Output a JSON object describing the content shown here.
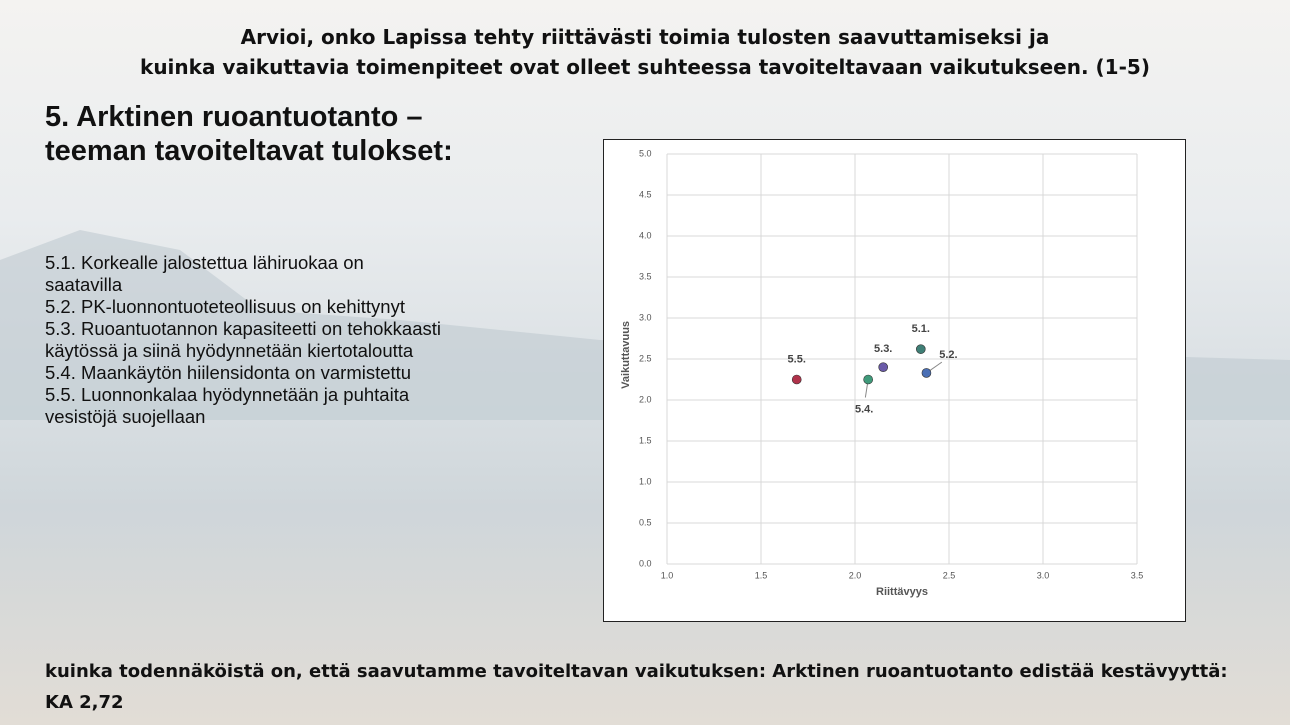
{
  "slide": {
    "title": [
      "Arvioi, onko Lapissa tehty riittävästi toimia tulosten saavuttamiseksi ja",
      "kuinka vaikuttavia toimenpiteet ovat olleet suhteessa tavoiteltavaan vaikutukseen. (1-5)"
    ],
    "heading": "5. Arktinen ruoantuotanto –teeman tavoiteltavat tulokset:",
    "items": [
      "5.1. Korkealle jalostettua lähiruokaa on saatavilla",
      "5.2. PK-luonnontuoteteollisuus on kehittynyt",
      "5.3. Ruoantuotannon kapasiteetti on tehokkaasti käytössä ja siinä hyödynnetään kiertotaloutta",
      "5.4. Maankäytön hiilensidonta on varmistettu",
      "5.5. Luonnonkalaa hyödynnetään ja puhtaita vesistöjä suojellaan"
    ],
    "footer": "kuinka todennäköistä on, että saavutamme tavoiteltavan vaikutuksen: Arktinen ruoantuotanto edistää kestävyyttä: KA 2,72"
  },
  "chart_data": {
    "type": "scatter",
    "x_label": "Riittävyys",
    "y_label": "Vaikuttavuus",
    "labels": [
      "5.1.",
      "5.2.",
      "5.3.",
      "5.4.",
      "5.5."
    ],
    "x": [
      2.35,
      2.38,
      2.15,
      2.07,
      1.69
    ],
    "values": [
      2.62,
      2.33,
      2.4,
      2.25,
      2.25
    ],
    "colors": [
      "#3f7f76",
      "#4a6fb5",
      "#6a5aa8",
      "#3f9a7a",
      "#b0324a"
    ],
    "xlim": [
      1,
      3.5
    ],
    "ylim": [
      0,
      5
    ],
    "xticks": [
      {
        "value": 1,
        "label": "1.0"
      },
      1.5,
      {
        "value": 2,
        "label": "2.0"
      },
      2.5,
      {
        "value": 3,
        "label": "3.0"
      },
      3.5
    ],
    "yticks": [
      {
        "value": 0,
        "label": "0.0"
      },
      0.5,
      {
        "value": 1,
        "label": "1.0"
      },
      1.5,
      {
        "value": 2,
        "label": "2.0"
      },
      2.5,
      {
        "value": 3,
        "label": "3.0"
      },
      3.5,
      {
        "value": 4,
        "label": "4.0"
      },
      4.5,
      {
        "value": 5,
        "label": "5.0"
      }
    ],
    "grid": true
  }
}
